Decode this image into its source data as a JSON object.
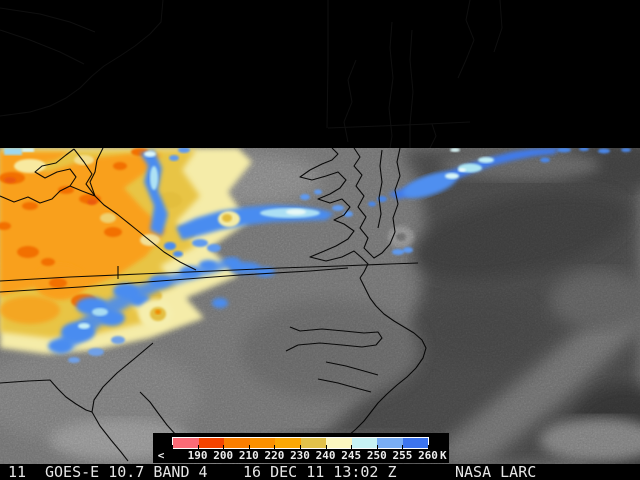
{
  "colorbar": {
    "tick_labels": [
      "<",
      "190",
      "200",
      "210",
      "220",
      "230",
      "240",
      "245",
      "250",
      "255",
      "260"
    ],
    "unit_label": "K",
    "segment_colors": [
      "#fb6b76",
      "#f54400",
      "#fa7e00",
      "#fb9000",
      "#fba705",
      "#e2c24a",
      "#fbf6c0",
      "#c6f2f4",
      "#79aef5",
      "#3c74ee"
    ]
  },
  "footer": {
    "frame_number": "11",
    "product": "GOES-E 10.7 BAND 4",
    "timestamp": "16 DEC 11 13:02 Z",
    "source": "NASA LARC"
  }
}
